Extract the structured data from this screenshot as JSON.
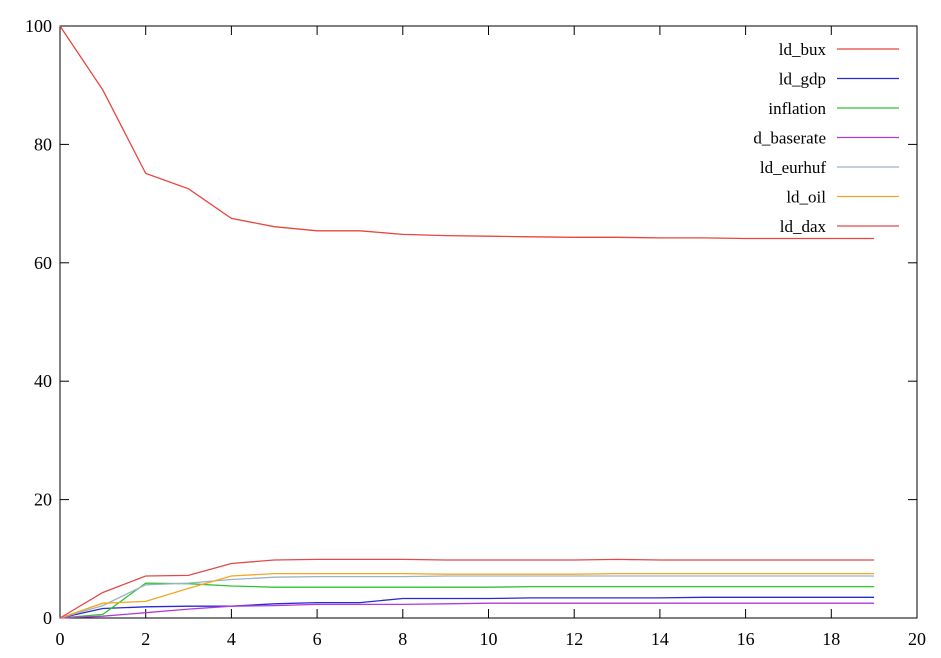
{
  "chart_data": {
    "type": "line",
    "title": "",
    "xlabel": "",
    "ylabel": "",
    "xlim": [
      0,
      20
    ],
    "ylim": [
      0,
      100
    ],
    "x_ticks": [
      "0",
      "2",
      "4",
      "6",
      "8",
      "10",
      "12",
      "14",
      "16",
      "18",
      "20"
    ],
    "y_ticks": [
      "0",
      "20",
      "40",
      "60",
      "80",
      "100"
    ],
    "grid": false,
    "legend_position": "top-right",
    "x": [
      0,
      1,
      2,
      3,
      4,
      5,
      6,
      7,
      8,
      9,
      10,
      11,
      12,
      13,
      14,
      15,
      16,
      17,
      18,
      19
    ],
    "series": [
      {
        "name": "ld_bux",
        "color": "#e8453c",
        "values": [
          100,
          89.2,
          75.1,
          72.5,
          67.5,
          66.1,
          65.4,
          65.4,
          64.8,
          64.6,
          64.5,
          64.4,
          64.3,
          64.3,
          64.2,
          64.2,
          64.1,
          64.1,
          64.1,
          64.1
        ]
      },
      {
        "name": "ld_gdp",
        "color": "#2a2ad0",
        "values": [
          0,
          1.6,
          1.9,
          2.0,
          2.0,
          2.4,
          2.6,
          2.6,
          3.3,
          3.3,
          3.3,
          3.4,
          3.4,
          3.4,
          3.4,
          3.5,
          3.5,
          3.5,
          3.5,
          3.5
        ]
      },
      {
        "name": "inflation",
        "color": "#2ec42e",
        "values": [
          0,
          0.6,
          5.9,
          5.8,
          5.4,
          5.2,
          5.2,
          5.2,
          5.2,
          5.2,
          5.2,
          5.3,
          5.3,
          5.3,
          5.3,
          5.3,
          5.3,
          5.3,
          5.3,
          5.3
        ]
      },
      {
        "name": "d_baserate",
        "color": "#b23ad8",
        "values": [
          0,
          0.3,
          0.9,
          1.5,
          2.0,
          2.1,
          2.3,
          2.3,
          2.3,
          2.4,
          2.5,
          2.5,
          2.5,
          2.5,
          2.5,
          2.5,
          2.5,
          2.5,
          2.5,
          2.5
        ]
      },
      {
        "name": "ld_eurhuf",
        "color": "#9ab3c6",
        "values": [
          0,
          2.1,
          5.6,
          5.9,
          6.5,
          6.9,
          7.0,
          7.0,
          7.0,
          7.1,
          7.1,
          7.1,
          7.1,
          7.1,
          7.1,
          7.1,
          7.1,
          7.1,
          7.1,
          7.1
        ]
      },
      {
        "name": "ld_oil",
        "color": "#f5a623",
        "values": [
          0,
          2.5,
          2.8,
          5.0,
          7.1,
          7.5,
          7.5,
          7.5,
          7.5,
          7.4,
          7.4,
          7.4,
          7.4,
          7.5,
          7.5,
          7.5,
          7.5,
          7.5,
          7.5,
          7.5
        ]
      },
      {
        "name": "ld_dax",
        "color": "#e04a4a",
        "values": [
          0,
          4.3,
          7.1,
          7.2,
          9.2,
          9.8,
          9.9,
          9.9,
          9.9,
          9.8,
          9.8,
          9.8,
          9.8,
          9.9,
          9.8,
          9.8,
          9.8,
          9.8,
          9.8,
          9.8
        ]
      }
    ]
  }
}
